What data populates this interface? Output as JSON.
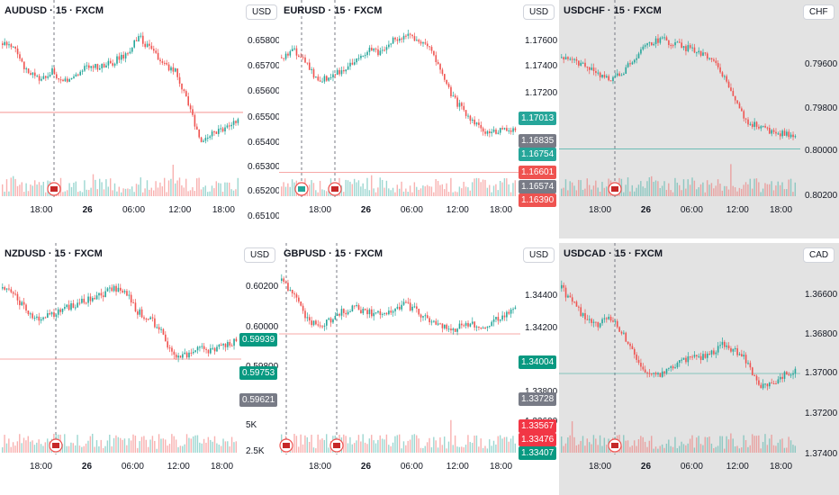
{
  "colors": {
    "up": "#26a69a",
    "down": "#ef5350",
    "gray_badge": "#787b86",
    "bg_dim": "#e3e3e3"
  },
  "icons": [
    "us-flag-event-icon",
    "eu-flag-event-icon",
    "uk-flag-event-icon"
  ],
  "charts": [
    {
      "id": "audusd",
      "title": "AUDUSD · 15 · FXCM",
      "currency": "USD",
      "dim": false,
      "y_labels": [
        "0.65800",
        "0.65700",
        "0.65600",
        "0.65500",
        "0.65400",
        "0.65300",
        "0.65200",
        "0.65100"
      ],
      "x_labels": [
        "18:00",
        "26",
        "06:00",
        "12:00",
        "18:00"
      ],
      "badges": [],
      "extra_labels": [],
      "hline_frac": 0.54
    },
    {
      "id": "eurusd",
      "title": "EURUSD · 15 · FXCM",
      "currency": "USD",
      "dim": false,
      "y_labels": [
        "1.17600",
        "1.17400",
        "1.17200"
      ],
      "x_labels": [
        "18:00",
        "26",
        "06:00",
        "12:00",
        "18:00"
      ],
      "badges": [
        {
          "label": "1.17013",
          "color": "#26a69a"
        },
        {
          "label": "1.16835",
          "color": "#787b86"
        },
        {
          "label": "1.16754",
          "color": "#26a69a"
        },
        {
          "label": "1.16601",
          "color": "#ef5350"
        },
        {
          "label": "1.16574",
          "color": "#787b86"
        },
        {
          "label": "1.16390",
          "color": "#ef5350"
        }
      ],
      "extra_labels": [],
      "hline_frac": 0.9
    },
    {
      "id": "usdchf",
      "title": "USDCHF · 15 · FXCM",
      "currency": "CHF",
      "dim": true,
      "y_labels": [
        "0.79600",
        "0.79800",
        "0.80000",
        "0.80200"
      ],
      "x_labels": [
        "18:00",
        "26",
        "06:00",
        "12:00",
        "18:00"
      ],
      "badges": [],
      "extra_labels": [],
      "hline_frac": 0.76
    },
    {
      "id": "nzdusd",
      "title": "NZDUSD · 15 · FXCM",
      "currency": "USD",
      "dim": false,
      "y_labels": [
        "0.60200",
        "0.60000",
        "0.59800"
      ],
      "x_labels": [
        "18:00",
        "26",
        "06:00",
        "12:00",
        "18:00"
      ],
      "badges": [
        {
          "label": "0.59939",
          "color": "#089981"
        },
        {
          "label": "0.59753",
          "color": "#089981"
        },
        {
          "label": "0.59621",
          "color": "#787b86"
        }
      ],
      "extra_labels": [
        "5K",
        "2.5K"
      ],
      "hline_frac": 0.52
    },
    {
      "id": "gbpusd",
      "title": "GBPUSD · 15 · FXCM",
      "currency": "USD",
      "dim": false,
      "y_labels": [
        "1.34400",
        "1.34200",
        "1.33800",
        "1.33600"
      ],
      "x_labels": [
        "18:00",
        "26",
        "06:00",
        "12:00",
        "18:00"
      ],
      "badges": [
        {
          "label": "1.34004",
          "color": "#089981"
        },
        {
          "label": "1.33728",
          "color": "#787b86"
        },
        {
          "label": "1.33567",
          "color": "#f23645"
        },
        {
          "label": "1.33476",
          "color": "#f23645"
        },
        {
          "label": "1.33407",
          "color": "#089981"
        }
      ],
      "extra_labels": [],
      "hline_frac": 0.38
    },
    {
      "id": "usdcad",
      "title": "USDCAD · 15 · FXCM",
      "currency": "CAD",
      "dim": true,
      "y_labels": [
        "1.36600",
        "1.36800",
        "1.37000",
        "1.37200",
        "1.37400"
      ],
      "x_labels": [
        "18:00",
        "26",
        "06:00",
        "12:00",
        "18:00"
      ],
      "badges": [],
      "extra_labels": [],
      "hline_frac": 0.6
    }
  ]
}
